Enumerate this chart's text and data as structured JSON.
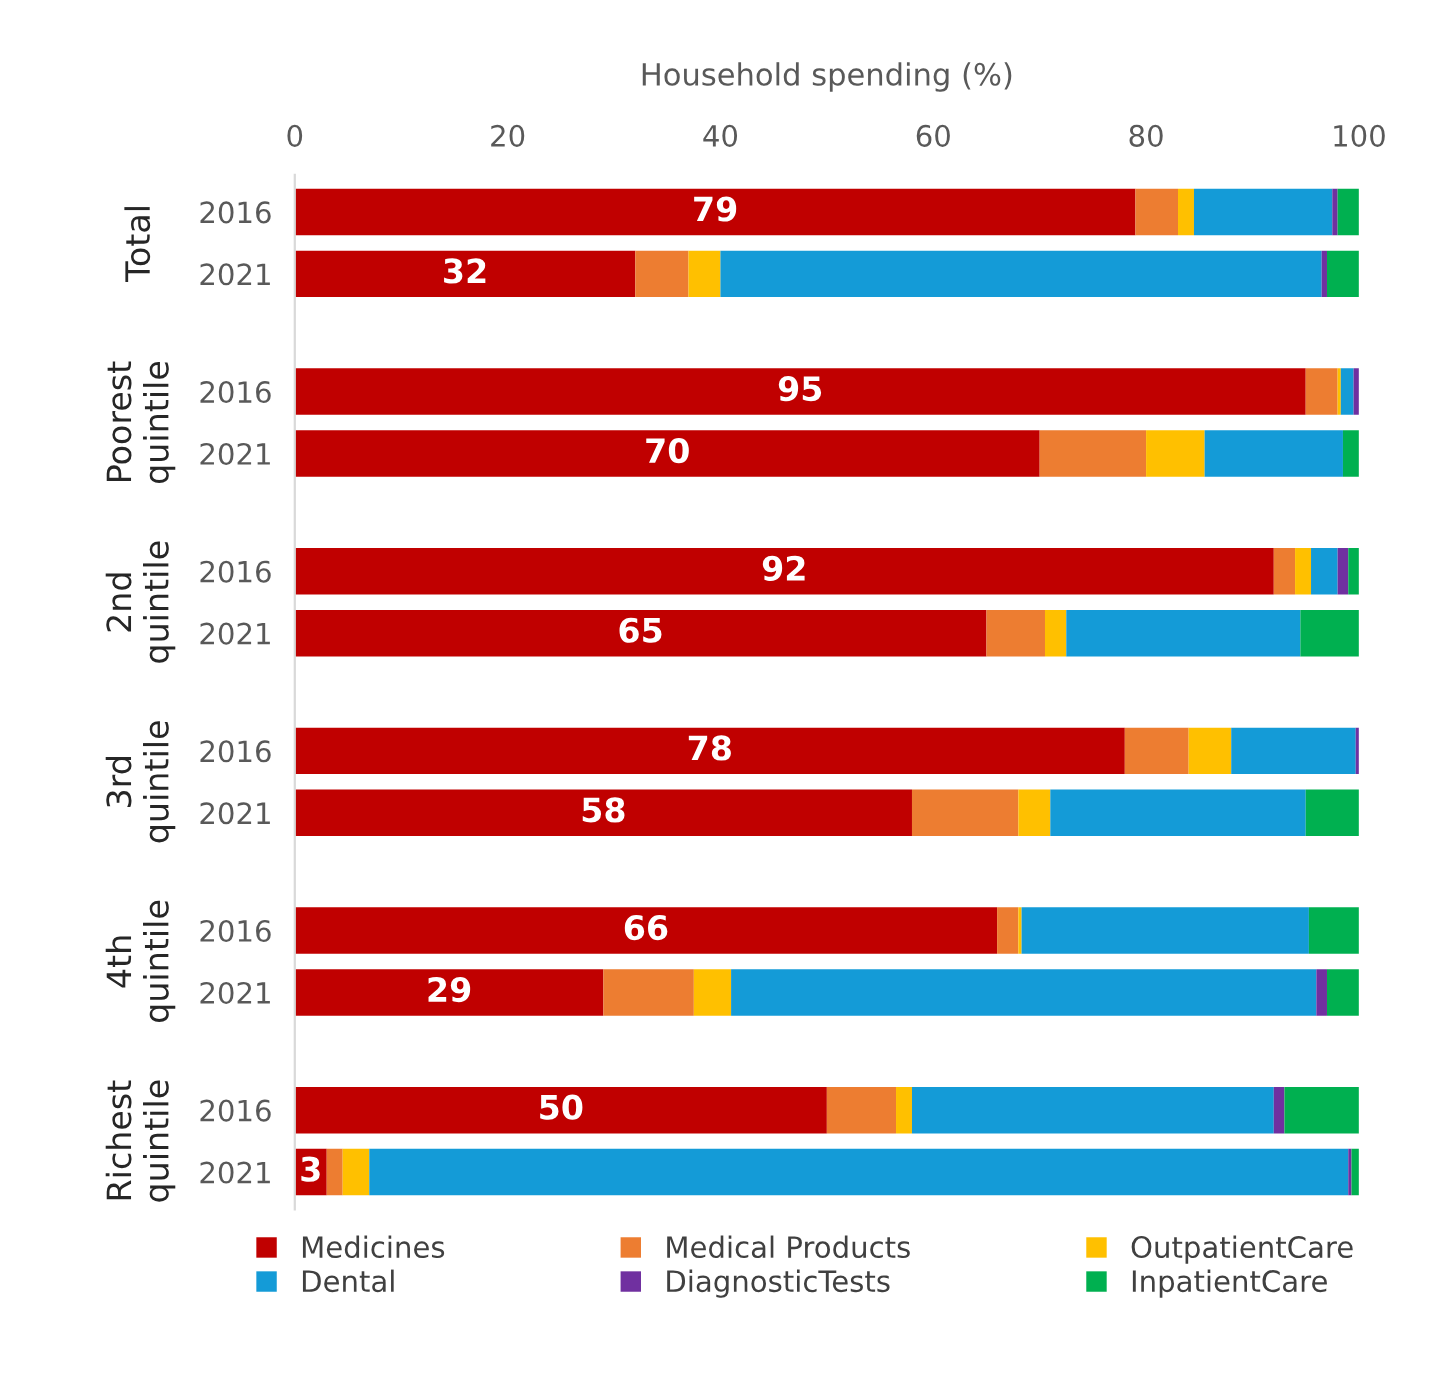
{
  "chart_data": {
    "type": "bar",
    "orientation": "horizontal",
    "stacked": true,
    "xlabel": "Household spending (%)",
    "categories": [
      "2016",
      "2021",
      "2016",
      "2021",
      "2016",
      "2021",
      "2016",
      "2021",
      "2016",
      "2021",
      "2016",
      "2021"
    ],
    "annotations": [
      "Total",
      "Poorest quintile",
      "2nd quintile",
      "3rd quintile",
      "4th quintile",
      "Richest quintile"
    ],
    "xlim": [
      0,
      100
    ],
    "xticks": [
      0,
      20,
      40,
      60,
      80,
      100
    ],
    "grid": false,
    "legend": "bottom",
    "series": [
      {
        "name": "Medicines",
        "color": "#c00000",
        "values": [
          79,
          32,
          95,
          70,
          92,
          65,
          78,
          58,
          66,
          29,
          50,
          3
        ],
        "value_labels": [
          "79",
          "32",
          "95",
          "70",
          "92",
          "65",
          "78",
          "58",
          "66",
          "29",
          "50",
          "3"
        ]
      },
      {
        "name": "Medical Products",
        "color": "#ed7d31",
        "values": [
          4,
          5,
          3,
          10,
          2,
          5.5,
          6,
          10,
          2,
          8.5,
          6.5,
          1.5
        ]
      },
      {
        "name": "OutpatientCare",
        "color": "#ffc000",
        "values": [
          1.5,
          3,
          0.3,
          5.5,
          1.5,
          2,
          4,
          3,
          0.3,
          3.5,
          1.5,
          2.5
        ]
      },
      {
        "name": "Dental",
        "color": "#149bd7",
        "values": [
          13,
          56.5,
          1.2,
          13,
          2.5,
          22,
          11.7,
          24,
          27,
          55,
          34,
          92
        ]
      },
      {
        "name": "DiagnosticTests",
        "color": "#7030a0",
        "values": [
          0.5,
          0.5,
          0.5,
          0,
          1,
          0,
          0.3,
          0,
          0,
          1,
          1,
          0.3
        ]
      },
      {
        "name": "InpatientCare",
        "color": "#00b050",
        "values": [
          2,
          3,
          0,
          1.5,
          1,
          5.5,
          null,
          5,
          4.7,
          3,
          7,
          0.7
        ]
      }
    ]
  }
}
